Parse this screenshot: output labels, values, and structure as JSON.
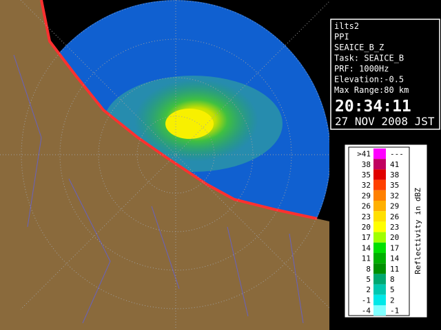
{
  "info": {
    "lines": [
      "ilts2",
      "PPI",
      "SEAICE_B_Z",
      "Task: SEAICE_B",
      "PRF: 1000Hz",
      "Elevation:-0.5",
      "Max Range:80 km"
    ],
    "time": "20:34:11",
    "date": "27 NOV 2008 JST"
  },
  "legend": {
    "title": "Reflectivity in dBZ",
    "rows": [
      {
        "low": ">41",
        "high": "---",
        "color": "#ff00ff"
      },
      {
        "low": "38",
        "high": "41",
        "color": "#c00060"
      },
      {
        "low": "35",
        "high": "38",
        "color": "#e00000"
      },
      {
        "low": "32",
        "high": "35",
        "color": "#ff4000"
      },
      {
        "low": "29",
        "high": "32",
        "color": "#ff8000"
      },
      {
        "low": "26",
        "high": "29",
        "color": "#ffb000"
      },
      {
        "low": "23",
        "high": "26",
        "color": "#ffe000"
      },
      {
        "low": "20",
        "high": "23",
        "color": "#ffff00"
      },
      {
        "low": "17",
        "high": "20",
        "color": "#a0ff00"
      },
      {
        "low": "14",
        "high": "17",
        "color": "#00e000"
      },
      {
        "low": "11",
        "high": "14",
        "color": "#00b000"
      },
      {
        "low": "8",
        "high": "11",
        "color": "#009000"
      },
      {
        "low": "5",
        "high": "8",
        "color": "#00a870"
      },
      {
        "low": "2",
        "high": "5",
        "color": "#00c8b0"
      },
      {
        "low": "-1",
        "high": "2",
        "color": "#00e8e8"
      },
      {
        "low": "-4",
        "high": "-1",
        "color": "#80ffff"
      }
    ]
  }
}
